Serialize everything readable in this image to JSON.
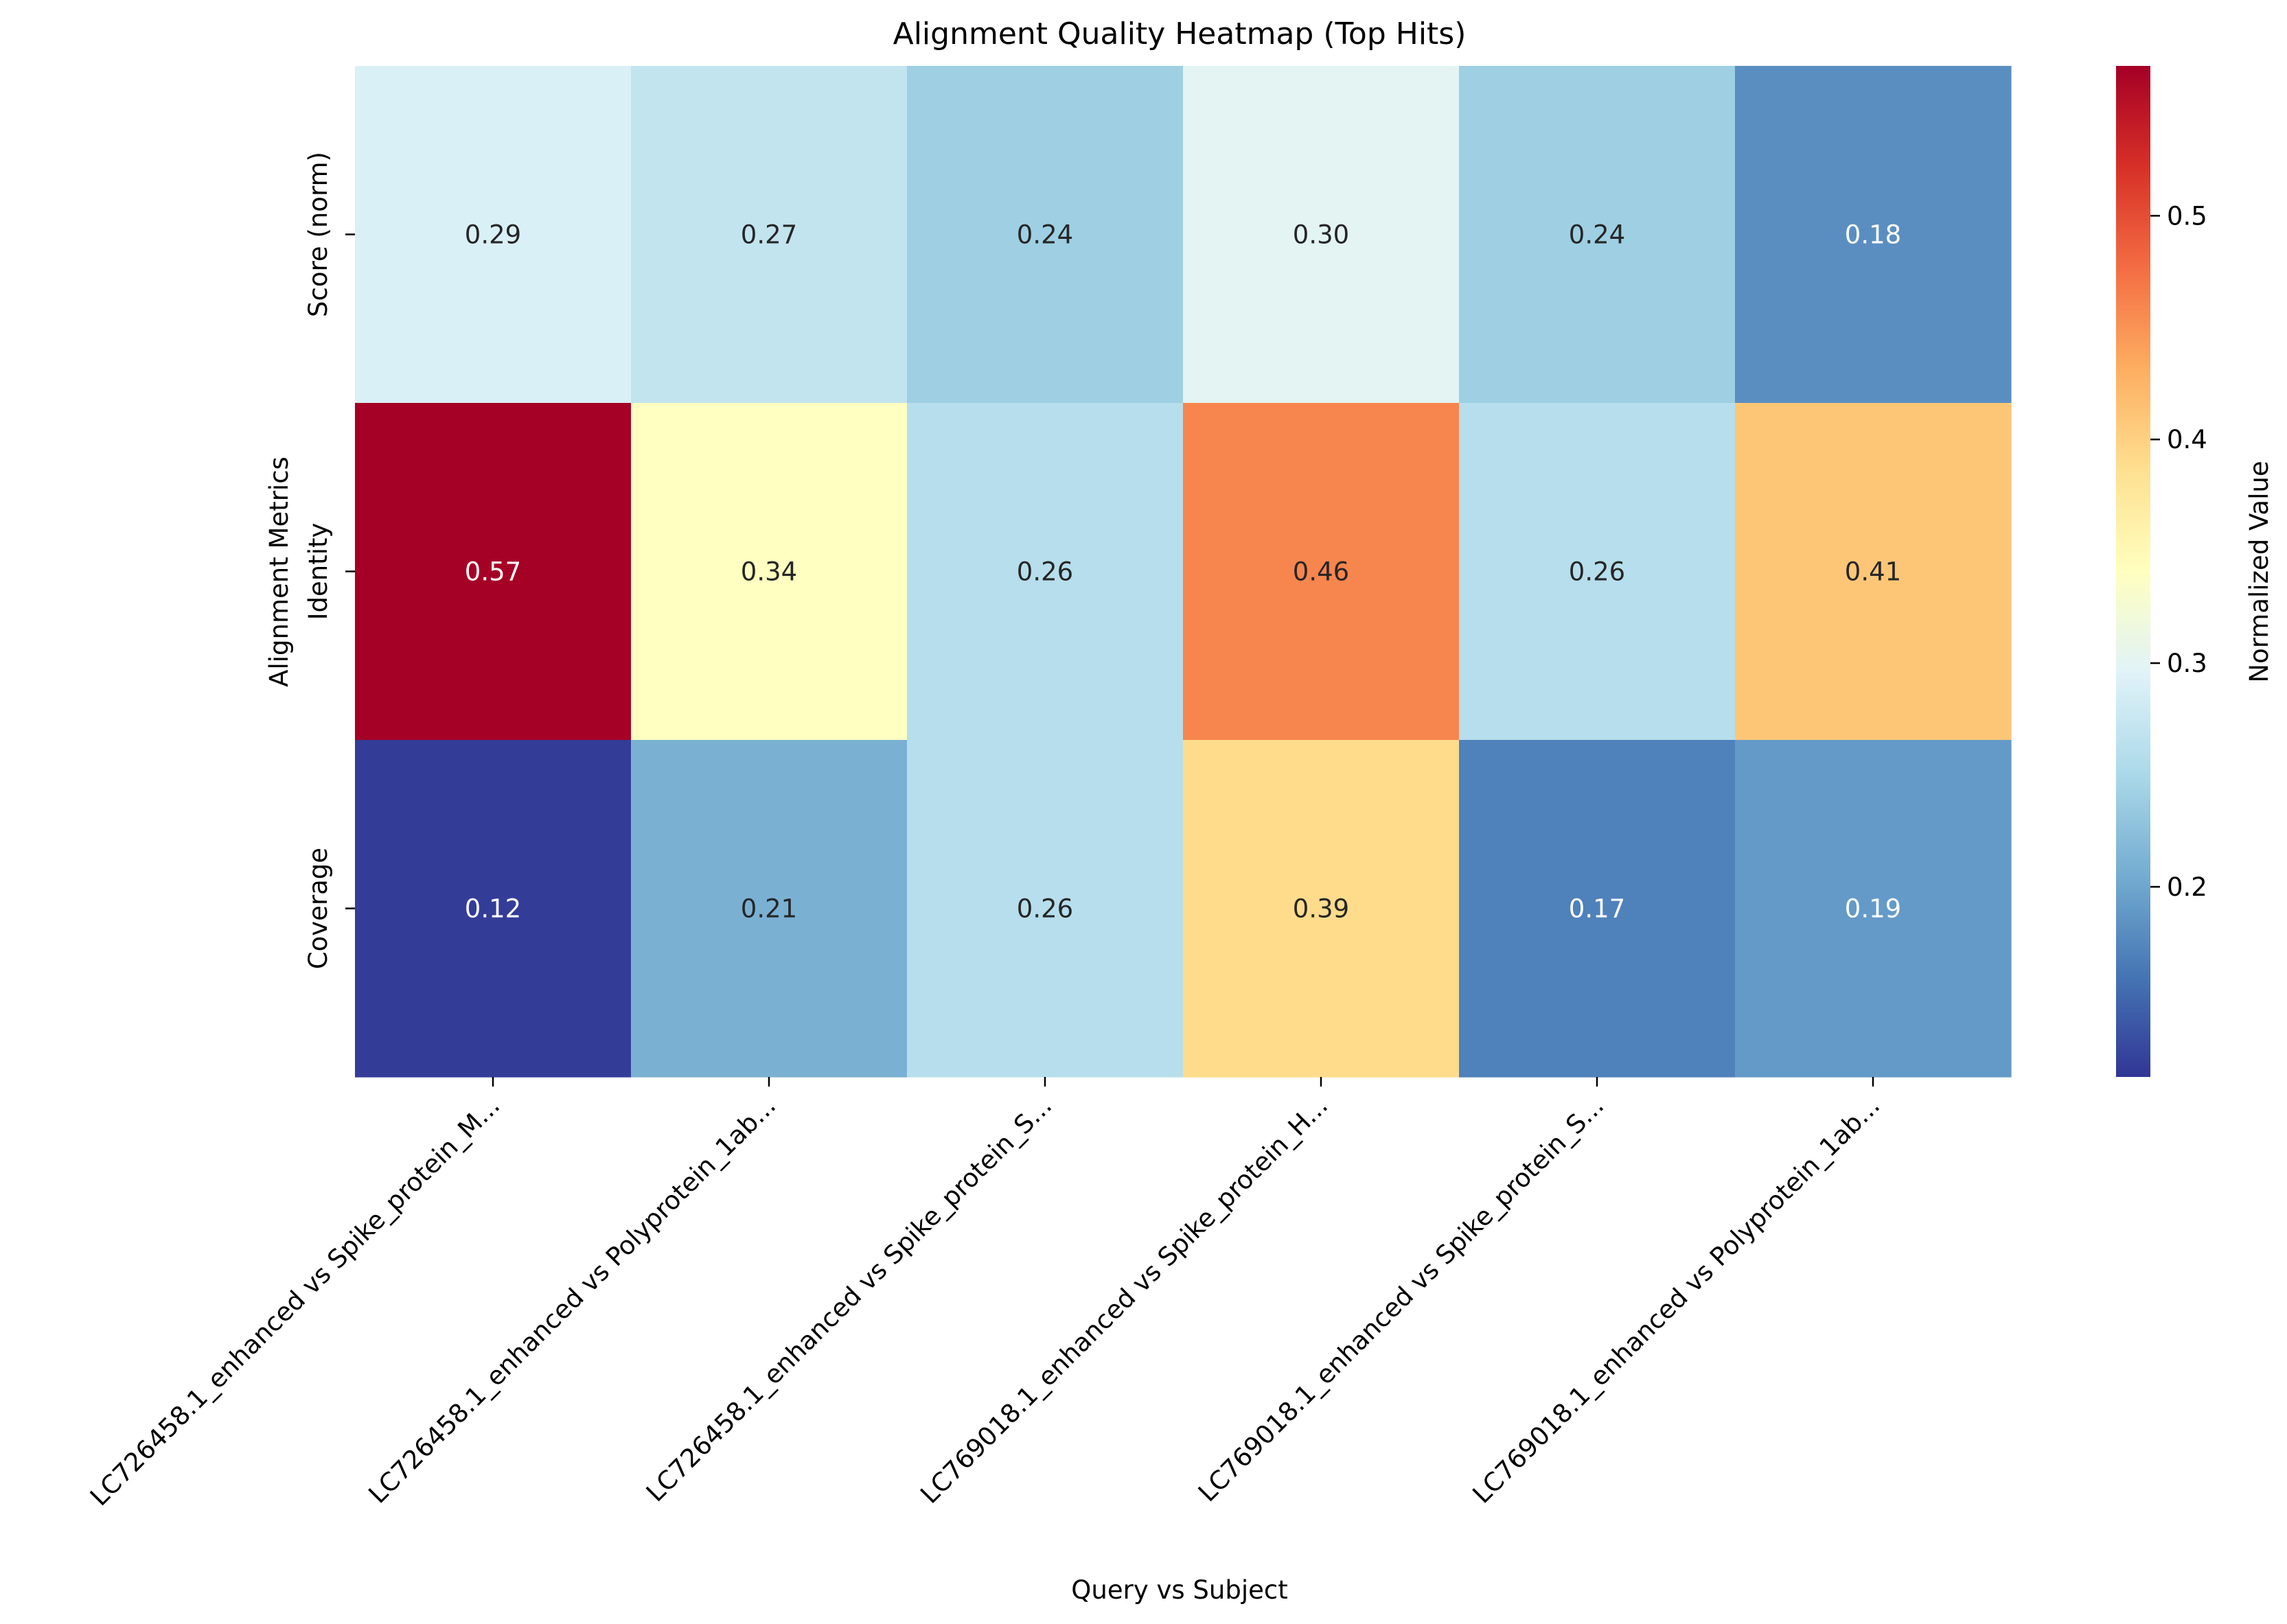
{
  "chart_data": {
    "type": "heatmap",
    "title": "Alignment Quality Heatmap (Top Hits)",
    "xlabel": "Query vs Subject",
    "ylabel": "Alignment Metrics",
    "rows": [
      "Score (norm)",
      "Identity",
      "Coverage"
    ],
    "columns": [
      "LC726458.1_enhanced vs Spike_protein_M...",
      "LC726458.1_enhanced vs Polyprotein_1ab...",
      "LC726458.1_enhanced vs Spike_protein_S...",
      "LC769018.1_enhanced vs Spike_protein_H...",
      "LC769018.1_enhanced vs Spike_protein_S...",
      "LC769018.1_enhanced vs Polyprotein_1ab..."
    ],
    "values": [
      [
        0.29,
        0.27,
        0.24,
        0.3,
        0.24,
        0.18
      ],
      [
        0.57,
        0.34,
        0.26,
        0.46,
        0.26,
        0.41
      ],
      [
        0.12,
        0.21,
        0.26,
        0.39,
        0.17,
        0.19
      ]
    ],
    "value_labels": [
      [
        "0.29",
        "0.27",
        "0.24",
        "0.30",
        "0.24",
        "0.18"
      ],
      [
        "0.57",
        "0.34",
        "0.26",
        "0.46",
        "0.26",
        "0.41"
      ],
      [
        "0.12",
        "0.21",
        "0.26",
        "0.39",
        "0.17",
        "0.19"
      ]
    ],
    "colormap": "RdYlBu_r",
    "colormap_stops": [
      "#313695",
      "#4575b4",
      "#74add1",
      "#abd9e9",
      "#e0f3f8",
      "#ffffbf",
      "#fee090",
      "#fdae61",
      "#f46d43",
      "#d73027",
      "#a50026"
    ],
    "color_range": [
      0.115,
      0.567
    ],
    "colorbar": {
      "label": "Normalized Value",
      "ticks": [
        0.2,
        0.3,
        0.4,
        0.5
      ],
      "tick_labels": [
        "0.2",
        "0.3",
        "0.4",
        "0.5"
      ]
    },
    "text_colors": {
      "dark": "#262626",
      "light": "#ffffff"
    },
    "grid": false,
    "legend": "colorbar-right"
  }
}
